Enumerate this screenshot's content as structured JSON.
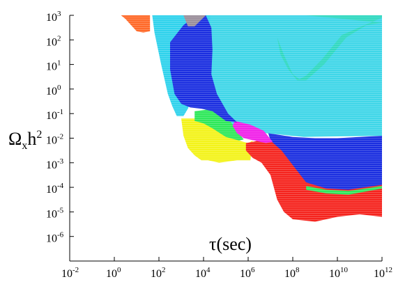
{
  "chart_data": {
    "type": "area",
    "x_scale": "log",
    "y_scale": "log",
    "xlim_exp": [
      -2,
      12
    ],
    "ylim_exp": [
      -7,
      3
    ],
    "x_ticks": [
      {
        "base": "10",
        "exp": "-2"
      },
      {
        "base": "10",
        "exp": "0"
      },
      {
        "base": "10",
        "exp": "2"
      },
      {
        "base": "10",
        "exp": "4"
      },
      {
        "base": "10",
        "exp": "6"
      },
      {
        "base": "10",
        "exp": "8"
      },
      {
        "base": "10",
        "exp": "10"
      },
      {
        "base": "10",
        "exp": "12"
      }
    ],
    "y_ticks": [
      {
        "base": "10",
        "exp": "3"
      },
      {
        "base": "10",
        "exp": "2"
      },
      {
        "base": "10",
        "exp": "1"
      },
      {
        "base": "10",
        "exp": "0"
      },
      {
        "base": "10",
        "exp": "-1"
      },
      {
        "base": "10",
        "exp": "-2"
      },
      {
        "base": "10",
        "exp": "-3"
      },
      {
        "base": "10",
        "exp": "-4"
      },
      {
        "base": "10",
        "exp": "-5"
      },
      {
        "base": "10",
        "exp": "-6"
      }
    ],
    "xlabel": "τ(sec)",
    "ylabel": {
      "main": "Ω",
      "sub": "x",
      "rest": "h",
      "sup": "2"
    },
    "grid": false,
    "legend": "none",
    "regions": [
      {
        "id": "cyan-main",
        "color": "#3fd6e8",
        "points": [
          [
            4.2,
            3
          ],
          [
            12,
            3
          ],
          [
            12,
            -1.9
          ],
          [
            8.5,
            -1.95
          ],
          [
            6.8,
            -1.8
          ],
          [
            5.2,
            -1.5
          ],
          [
            4.6,
            -0.8
          ],
          [
            4.3,
            0.5
          ],
          [
            4.2,
            2
          ]
        ]
      },
      {
        "id": "cyan-left",
        "color": "#2fd2ec",
        "points": [
          [
            1.7,
            3
          ],
          [
            4.3,
            3
          ],
          [
            4.2,
            1
          ],
          [
            3.9,
            0.3
          ],
          [
            3.6,
            0
          ],
          [
            3.3,
            -0.8
          ],
          [
            3.1,
            -1.1
          ],
          [
            2.8,
            -1.1
          ],
          [
            2.6,
            -0.7
          ],
          [
            2.4,
            -0.2
          ],
          [
            2.1,
            1
          ],
          [
            1.8,
            2.3
          ],
          [
            1.7,
            3
          ]
        ]
      },
      {
        "id": "teal-band",
        "color": "#2fd8c0",
        "points": [
          [
            8.6,
            3
          ],
          [
            12,
            3
          ],
          [
            12,
            2.9
          ],
          [
            10.2,
            2.2
          ],
          [
            9.3,
            1.2
          ],
          [
            8.6,
            0.55
          ],
          [
            8.3,
            0.4
          ],
          [
            8,
            0.6
          ],
          [
            7.6,
            1.4
          ],
          [
            7.3,
            2.1
          ],
          [
            7.45,
            1.4
          ],
          [
            7.8,
            0.8
          ],
          [
            8.2,
            0.35
          ],
          [
            8.6,
            0.35
          ],
          [
            9.4,
            1
          ],
          [
            10.4,
            2.1
          ],
          [
            11.3,
            2.6
          ],
          [
            12,
            2.7
          ]
        ]
      },
      {
        "id": "yellow",
        "color": "#f3f31a",
        "points": [
          [
            3,
            -1.2
          ],
          [
            4,
            -1.2
          ],
          [
            4.9,
            -1.6
          ],
          [
            5.6,
            -2.1
          ],
          [
            6,
            -2.2
          ],
          [
            6.2,
            -2.1
          ],
          [
            6.1,
            -2.9
          ],
          [
            5.5,
            -2.9
          ],
          [
            4.7,
            -3
          ],
          [
            4.2,
            -2.9
          ],
          [
            3.9,
            -2.9
          ],
          [
            3.6,
            -2.7
          ],
          [
            3.3,
            -2.4
          ],
          [
            3.1,
            -1.9
          ],
          [
            3,
            -1.2
          ]
        ]
      },
      {
        "id": "green",
        "color": "#2ee85a",
        "points": [
          [
            3.6,
            -0.9
          ],
          [
            4.5,
            -0.8
          ],
          [
            5,
            -1.05
          ],
          [
            5.5,
            -1.7
          ],
          [
            5.8,
            -2.05
          ],
          [
            5.6,
            -2.1
          ],
          [
            5,
            -1.95
          ],
          [
            4.4,
            -1.6
          ],
          [
            4,
            -1.4
          ],
          [
            3.6,
            -1.3
          ]
        ]
      },
      {
        "id": "red",
        "color": "#f5241e",
        "points": [
          [
            5.9,
            -2.2
          ],
          [
            6.2,
            -2.15
          ],
          [
            7,
            -2
          ],
          [
            8,
            -2.2
          ],
          [
            9,
            -2.4
          ],
          [
            10,
            -2.5
          ],
          [
            11,
            -2.5
          ],
          [
            12,
            -2.5
          ],
          [
            12,
            -5.2
          ],
          [
            11,
            -5.1
          ],
          [
            10,
            -5.2
          ],
          [
            9,
            -5.4
          ],
          [
            8,
            -5.3
          ],
          [
            7.6,
            -5
          ],
          [
            7.3,
            -4.5
          ],
          [
            7,
            -3.5
          ],
          [
            6.6,
            -3
          ],
          [
            6.2,
            -2.8
          ],
          [
            5.9,
            -2.5
          ]
        ]
      },
      {
        "id": "green-strip",
        "color": "#2ee85a",
        "points": [
          [
            8.6,
            -3.95
          ],
          [
            9.5,
            -4.1
          ],
          [
            10.5,
            -4.15
          ],
          [
            12,
            -3.95
          ],
          [
            12,
            -4.05
          ],
          [
            10.5,
            -4.3
          ],
          [
            9.5,
            -4.25
          ],
          [
            8.6,
            -4.1
          ]
        ]
      },
      {
        "id": "blue-right",
        "color": "#1a2ee0",
        "points": [
          [
            6.9,
            -1.8
          ],
          [
            8,
            -1.95
          ],
          [
            9,
            -2
          ],
          [
            10,
            -2
          ],
          [
            11,
            -1.95
          ],
          [
            12,
            -1.9
          ],
          [
            12,
            -3.9
          ],
          [
            10.5,
            -4.1
          ],
          [
            9.5,
            -4.05
          ],
          [
            8.6,
            -3.8
          ],
          [
            8,
            -3.1
          ],
          [
            7.5,
            -2.5
          ],
          [
            7,
            -2.1
          ]
        ]
      },
      {
        "id": "magenta",
        "color": "#f020e8",
        "points": [
          [
            5.4,
            -1.3
          ],
          [
            6.1,
            -1.45
          ],
          [
            6.7,
            -1.7
          ],
          [
            7.1,
            -2.15
          ],
          [
            6.8,
            -2.2
          ],
          [
            6.3,
            -2.1
          ],
          [
            5.8,
            -2
          ],
          [
            5.5,
            -1.8
          ],
          [
            5.3,
            -1.5
          ]
        ]
      },
      {
        "id": "blue-left",
        "color": "#1a2ee0",
        "points": [
          [
            2.5,
            1.9
          ],
          [
            3.1,
            2.6
          ],
          [
            3.6,
            2.95
          ],
          [
            4.1,
            3
          ],
          [
            4.35,
            2.5
          ],
          [
            4.4,
            1.6
          ],
          [
            4.35,
            0.6
          ],
          [
            4.6,
            -0.2
          ],
          [
            5.1,
            -1
          ],
          [
            5.5,
            -1.35
          ],
          [
            5,
            -1.3
          ],
          [
            4.4,
            -0.9
          ],
          [
            3.9,
            -0.8
          ],
          [
            3.4,
            -0.75
          ],
          [
            3,
            -0.6
          ],
          [
            2.7,
            -0.2
          ],
          [
            2.5,
            0.8
          ]
        ]
      },
      {
        "id": "orange",
        "color": "#ff6a2a",
        "points": [
          [
            0.3,
            3
          ],
          [
            1.6,
            3
          ],
          [
            1.6,
            2.35
          ],
          [
            1.3,
            2.3
          ],
          [
            1,
            2.35
          ],
          [
            0.75,
            2.6
          ],
          [
            0.5,
            2.85
          ]
        ]
      },
      {
        "id": "gray-patch",
        "color": "#9a8e9a",
        "points": [
          [
            3.1,
            3
          ],
          [
            4.1,
            3
          ],
          [
            3.6,
            2.55
          ],
          [
            3.3,
            2.55
          ]
        ]
      }
    ]
  }
}
